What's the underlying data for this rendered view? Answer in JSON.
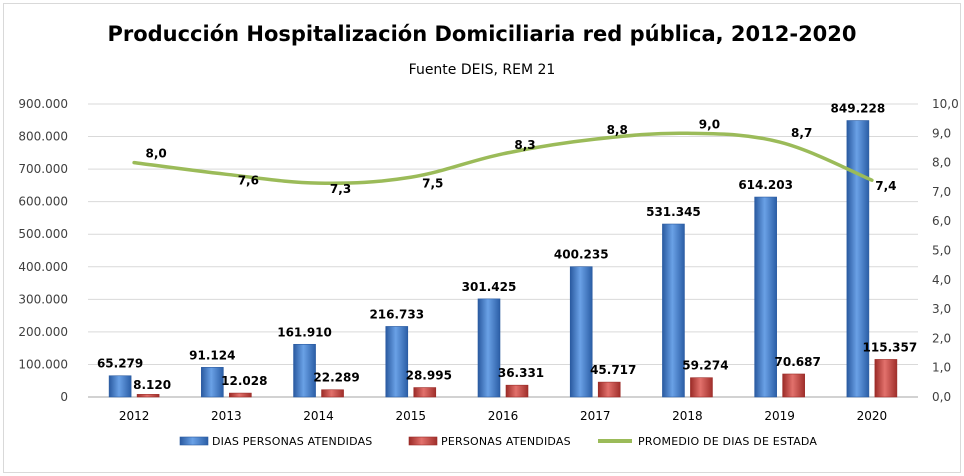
{
  "chart_data": {
    "type": "bar",
    "title": "Producción Hospitalización Domiciliaria red pública, 2012-2020",
    "subtitle": "Fuente DEIS, REM 21",
    "categories": [
      "2012",
      "2013",
      "2014",
      "2015",
      "2016",
      "2017",
      "2018",
      "2019",
      "2020"
    ],
    "series": [
      {
        "name": "DIAS PERSONAS ATENDIDAS",
        "type": "bar",
        "axis": "left",
        "color": "#3f7fd0",
        "values": [
          65279,
          91124,
          161910,
          216733,
          301425,
          400235,
          531345,
          614203,
          849228
        ],
        "labels": [
          "65.279",
          "91.124",
          "161.910",
          "216.733",
          "301.425",
          "400.235",
          "531.345",
          "614.203",
          "849.228"
        ]
      },
      {
        "name": "PERSONAS ATENDIDAS",
        "type": "bar",
        "axis": "left",
        "color": "#c8403c",
        "values": [
          8120,
          12028,
          22289,
          28995,
          36331,
          45717,
          59274,
          70687,
          115357
        ],
        "labels": [
          "8.120",
          "12.028",
          "22.289",
          "28.995",
          "36.331",
          "45.717",
          "59.274",
          "70.687",
          "115.357"
        ]
      },
      {
        "name": "PROMEDIO DE DIAS DE ESTADA",
        "type": "line",
        "axis": "right",
        "color": "#9bbb59",
        "values": [
          8.0,
          7.6,
          7.3,
          7.5,
          8.3,
          8.8,
          9.0,
          8.7,
          7.4
        ],
        "labels": [
          "8,0",
          "7,6",
          "7,3",
          "7,5",
          "8,3",
          "8,8",
          "9,0",
          "8,7",
          "7,4"
        ]
      }
    ],
    "y_left": {
      "ylim": [
        0,
        900000
      ],
      "ticks": [
        0,
        100000,
        200000,
        300000,
        400000,
        500000,
        600000,
        700000,
        800000,
        900000
      ],
      "tick_labels": [
        "0",
        "100.000",
        "200.000",
        "300.000",
        "400.000",
        "500.000",
        "600.000",
        "700.000",
        "800.000",
        "900.000"
      ]
    },
    "y_right": {
      "ylim": [
        0,
        10
      ],
      "ticks": [
        0,
        1,
        2,
        3,
        4,
        5,
        6,
        7,
        8,
        9,
        10
      ],
      "tick_labels": [
        "0,0",
        "1,0",
        "2,0",
        "3,0",
        "4,0",
        "5,0",
        "6,0",
        "7,0",
        "8,0",
        "9,0",
        "10,0"
      ]
    },
    "grid": true,
    "legend": "bottom",
    "xlabel": "",
    "ylabel": ""
  }
}
